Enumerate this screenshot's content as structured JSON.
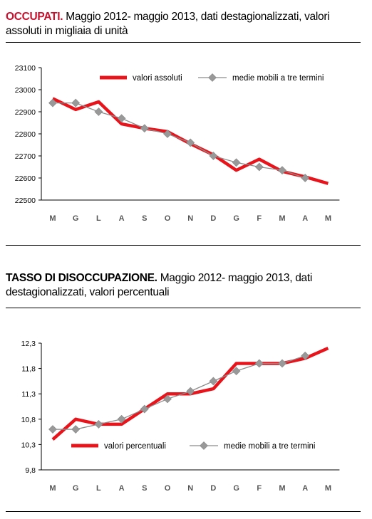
{
  "panel1": {
    "title_bold": "OCCUPATI.",
    "title_rest": " Maggio 2012- maggio 2013, dati destagionalizzati, valori assoluti in migliaia di unità"
  },
  "panel2": {
    "title_bold": "TASSO DI DISOCCUPAZIONE.",
    "title_rest": " Maggio 2012- maggio 2013, dati destagionalizzati, valori percentuali"
  },
  "colors": {
    "primary": "#e8141c",
    "secondary": "#8c8c8c",
    "marker": "#999999"
  },
  "chart_data": [
    {
      "type": "line",
      "categories": [
        "M",
        "G",
        "L",
        "A",
        "S",
        "O",
        "N",
        "D",
        "G",
        "F",
        "M",
        "A",
        "M"
      ],
      "ylim": [
        22500,
        23100
      ],
      "yticks": [
        "22500",
        "22600",
        "22700",
        "22800",
        "22900",
        "23000",
        "23100"
      ],
      "legend_position": "top-right",
      "series": [
        {
          "name": "valori assoluti",
          "values": [
            22960,
            22910,
            22945,
            22845,
            22825,
            22810,
            22755,
            22705,
            22635,
            22685,
            22630,
            22605,
            22575
          ]
        },
        {
          "name": "medie mobili a tre termini",
          "values": [
            22940,
            22940,
            22900,
            22870,
            22825,
            22800,
            22760,
            22700,
            22670,
            22650,
            22635,
            22600,
            null
          ]
        }
      ]
    },
    {
      "type": "line",
      "categories": [
        "M",
        "G",
        "L",
        "A",
        "S",
        "O",
        "N",
        "D",
        "G",
        "F",
        "M",
        "A",
        "M"
      ],
      "ylim": [
        9.8,
        12.3
      ],
      "yticks": [
        "9,8",
        "10,3",
        "10,8",
        "11,3",
        "11,8",
        "12,3"
      ],
      "legend_position": "bottom",
      "series": [
        {
          "name": "valori percentuali",
          "values": [
            10.4,
            10.8,
            10.7,
            10.7,
            11.0,
            11.3,
            11.3,
            11.4,
            11.9,
            11.9,
            11.9,
            12.0,
            12.2
          ]
        },
        {
          "name": "medie mobili a tre termini",
          "values": [
            10.6,
            10.6,
            10.7,
            10.8,
            11.0,
            11.2,
            11.35,
            11.55,
            11.75,
            11.9,
            11.9,
            12.05,
            null
          ]
        }
      ]
    }
  ]
}
